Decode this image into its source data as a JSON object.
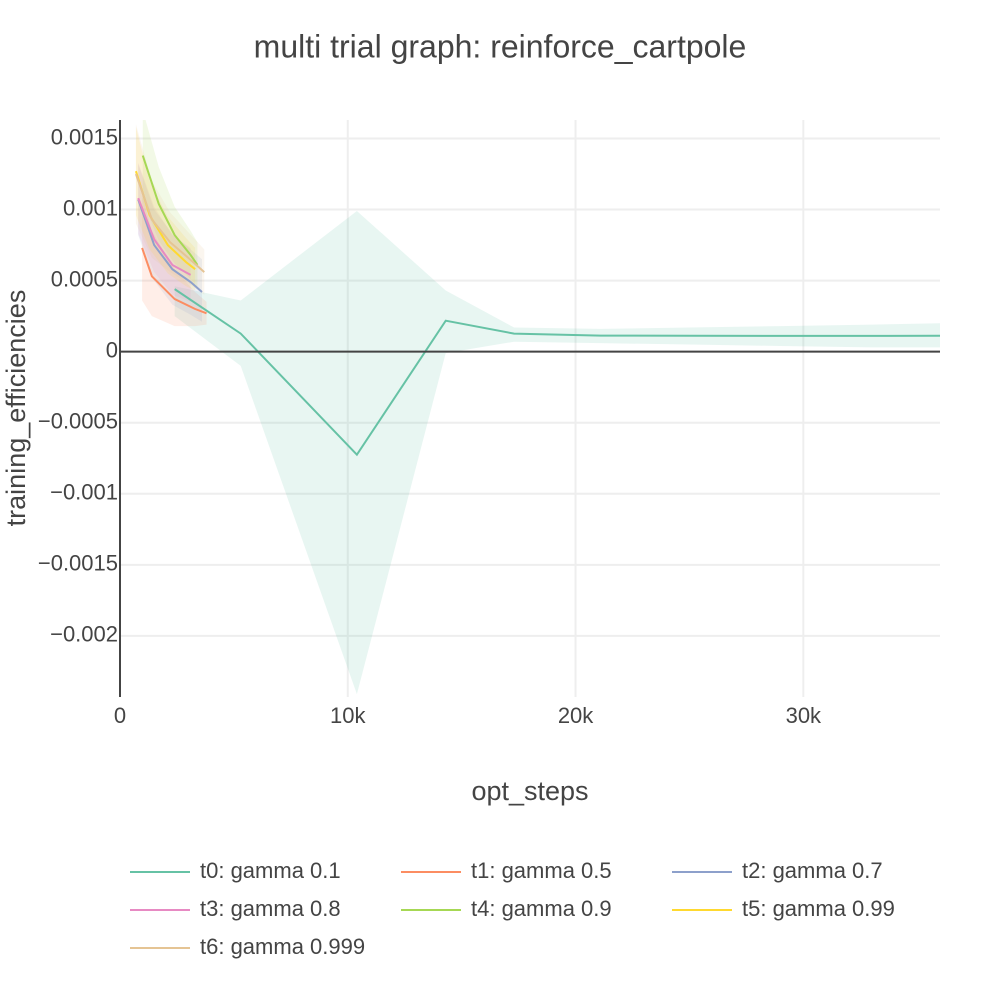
{
  "chart_data": {
    "type": "line",
    "title": "multi trial graph: reinforce_cartpole",
    "x_label": "opt_steps",
    "y_label": "training_efficiencies",
    "xlim": [
      0,
      36000
    ],
    "ylim": [
      -0.00243,
      0.00163
    ],
    "xticks": [
      0,
      {
        "value": 10000,
        "label": "10k"
      },
      {
        "value": 20000,
        "label": "20k"
      },
      {
        "value": 30000,
        "label": "30k"
      }
    ],
    "yticks": [
      {
        "value": -0.002,
        "label": "−0.002"
      },
      {
        "value": -0.0015,
        "label": "−0.0015"
      },
      {
        "value": -0.001,
        "label": "−0.001"
      },
      {
        "value": -0.0005,
        "label": "−0.0005"
      },
      0,
      0.0005,
      0.001,
      0.0015
    ],
    "grid": true,
    "legend": "bottom",
    "series": [
      {
        "name": "t0: gamma 0.1",
        "color": "#66c2a5",
        "x": [
          2400,
          5300,
          10400,
          14300,
          17300,
          21100,
          25000,
          29000,
          33000,
          36000
        ],
        "values": [
          0.00044,
          0.000127,
          -0.000725,
          0.000218,
          0.000127,
          0.000113,
          0.000112,
          0.000111,
          0.000111,
          0.000112
        ],
        "upper": [
          0.00046,
          0.00036,
          0.00099,
          0.00043,
          0.00017,
          0.00016,
          0.00017,
          0.00018,
          0.00019,
          0.0002
        ],
        "lower": [
          0.00025,
          -0.0001,
          -0.00241,
          -1e-05,
          7e-05,
          6e-05,
          5e-05,
          4e-05,
          3e-05,
          3e-05
        ]
      },
      {
        "name": "t1: gamma 0.5",
        "color": "#fc8d62",
        "x": [
          970,
          1400,
          2400,
          3300,
          3800
        ],
        "values": [
          0.00073,
          0.00053,
          0.00037,
          0.0003,
          0.00027
        ],
        "upper": [
          0.0011,
          0.00085,
          0.00058,
          0.00042,
          0.00035
        ],
        "lower": [
          0.00036,
          0.00025,
          0.00018,
          0.00018,
          0.00019
        ]
      },
      {
        "name": "t2: gamma 0.7",
        "color": "#8da0cb",
        "x": [
          800,
          1500,
          2300,
          3100,
          3600
        ],
        "values": [
          0.00107,
          0.00075,
          0.00058,
          0.00049,
          0.00042
        ],
        "upper": [
          0.00132,
          0.001,
          0.00083,
          0.00072,
          0.00065
        ],
        "lower": [
          0.00082,
          0.0005,
          0.00033,
          0.00026,
          0.00021
        ]
      },
      {
        "name": "t3: gamma 0.8",
        "color": "#e78ac3",
        "x": [
          800,
          1500,
          2300,
          3100
        ],
        "values": [
          0.00108,
          0.00079,
          0.00061,
          0.00054
        ],
        "upper": [
          0.00133,
          0.00102,
          0.00082,
          0.00073
        ],
        "lower": [
          0.00083,
          0.00056,
          0.0004,
          0.00035
        ]
      },
      {
        "name": "t4: gamma 0.9",
        "color": "#a6d854",
        "x": [
          1000,
          1700,
          2400,
          3100,
          3400
        ],
        "values": [
          0.00138,
          0.00104,
          0.00082,
          0.00068,
          0.00061
        ],
        "upper": [
          0.0017,
          0.0013,
          0.00102,
          0.00085,
          0.00077
        ],
        "lower": [
          0.00106,
          0.00078,
          0.00062,
          0.00051,
          0.00045
        ]
      },
      {
        "name": "t5: gamma 0.99",
        "color": "#ffd92f",
        "x": [
          700,
          1300,
          2100,
          2900,
          3300
        ],
        "values": [
          0.00127,
          0.00096,
          0.00075,
          0.00063,
          0.00058
        ],
        "upper": [
          0.00158,
          0.0012,
          0.00095,
          0.0008,
          0.00073
        ],
        "lower": [
          0.00096,
          0.00072,
          0.00055,
          0.00046,
          0.00043
        ]
      },
      {
        "name": "t6: gamma 0.999",
        "color": "#e5c494",
        "x": [
          700,
          1400,
          2200,
          3000,
          3700
        ],
        "values": [
          0.00125,
          0.00093,
          0.00077,
          0.00066,
          0.00056
        ],
        "upper": [
          0.0016,
          0.0012,
          0.00098,
          0.00084,
          0.00072
        ],
        "lower": [
          0.0009,
          0.00066,
          0.00056,
          0.00048,
          0.0004
        ]
      }
    ]
  }
}
